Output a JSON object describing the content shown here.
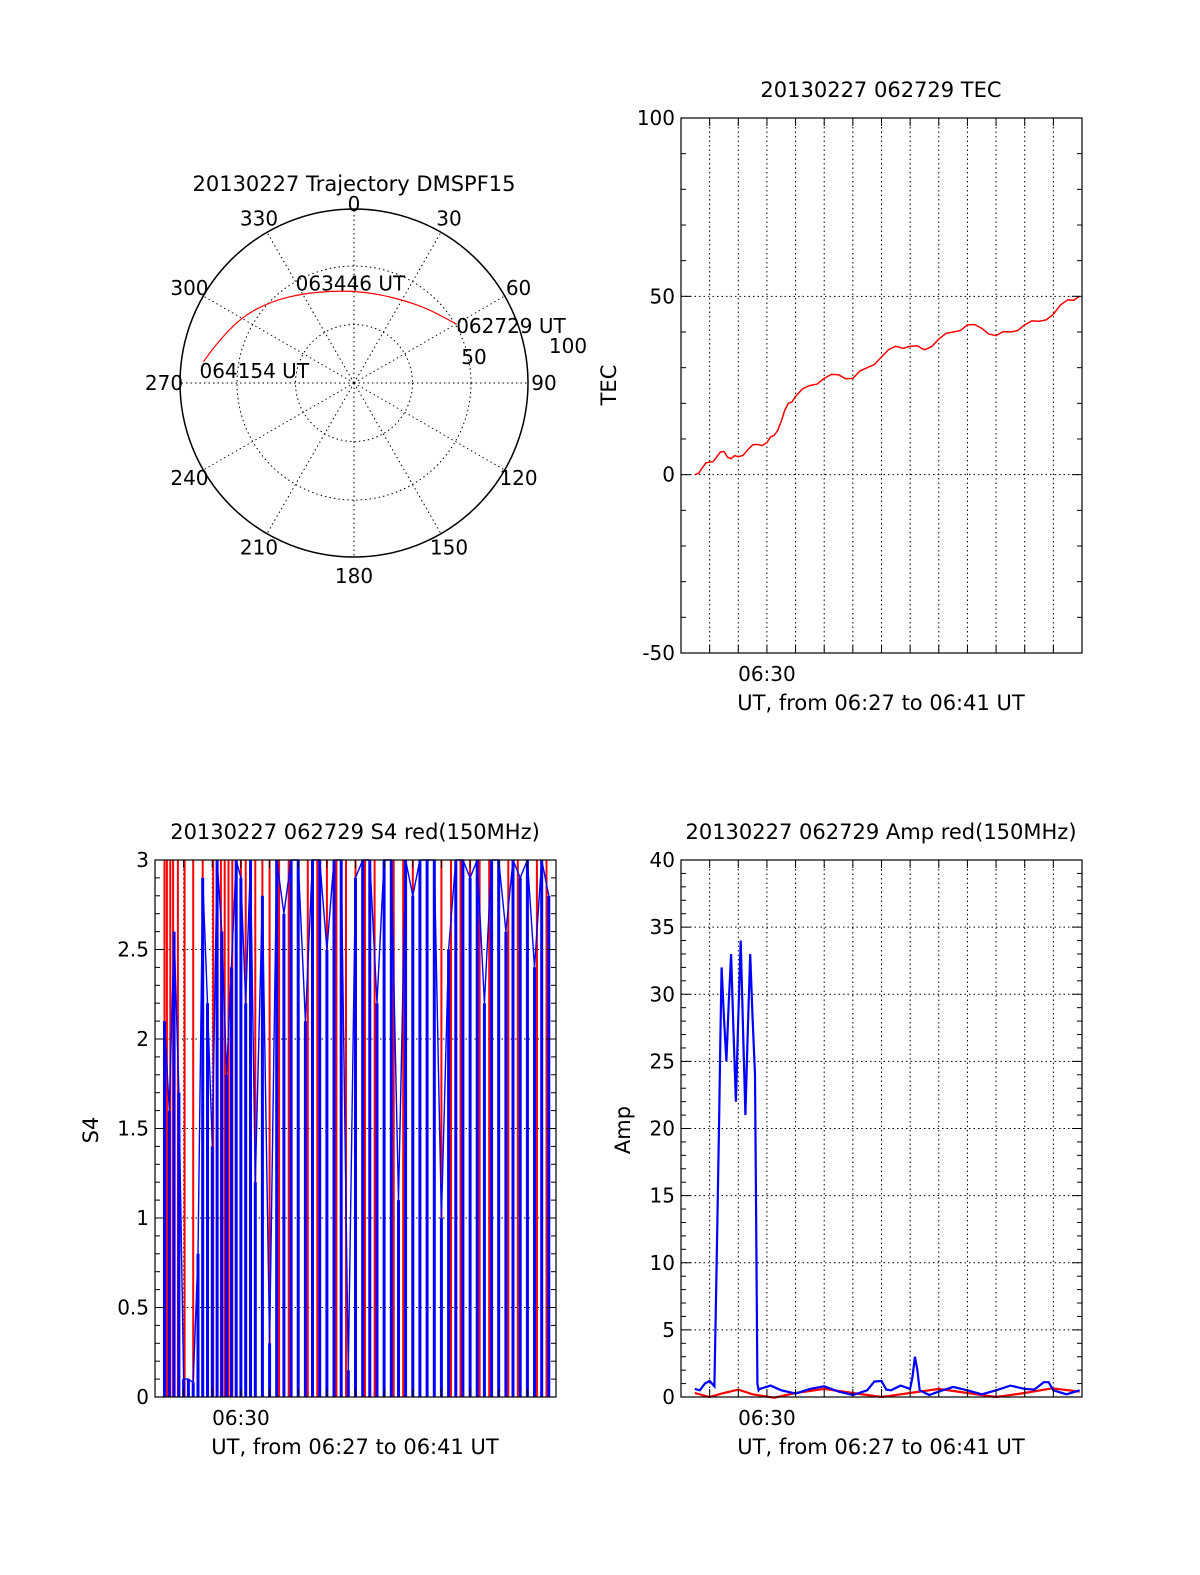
{
  "colors": {
    "red": "#ff0000",
    "blue": "#0000ff",
    "axis": "#000000"
  },
  "chart_data": [
    {
      "id": "trajectory",
      "type": "polar",
      "title": "20130227 Trajectory DMSPF15",
      "azimuth_labels": [
        "0",
        "30",
        "60",
        "90",
        "120",
        "150",
        "180",
        "210",
        "240",
        "270",
        "300",
        "330"
      ],
      "radial_labels": [
        "50",
        "100"
      ],
      "grid": true,
      "trajectory_color": "#ff0000",
      "trajectory": [
        {
          "az": 60,
          "r": 118
        },
        {
          "az": 45,
          "r": 105
        },
        {
          "az": 30,
          "r": 96
        },
        {
          "az": 15,
          "r": 92
        },
        {
          "az": 0,
          "r": 92
        },
        {
          "az": -15,
          "r": 95
        },
        {
          "az": -30,
          "r": 103
        },
        {
          "az": -45,
          "r": 116
        },
        {
          "az": -60,
          "r": 131
        },
        {
          "az": -75,
          "r": 144
        },
        {
          "az": -82,
          "r": 152
        }
      ],
      "annotations": [
        {
          "text": "062729 UT",
          "az": 60,
          "r": 118
        },
        {
          "text": "063446 UT",
          "az": -10,
          "r": 94
        },
        {
          "text": "064154 UT",
          "az": -82,
          "r": 152
        }
      ]
    },
    {
      "id": "tec",
      "type": "line",
      "title": "20130227 062729 TEC",
      "xlabel": "UT, from 06:27 to 06:41 UT",
      "ylabel": "TEC",
      "xlim": [
        "06:27:00",
        "06:41:00"
      ],
      "ylim": [
        -50,
        100
      ],
      "yticks": [
        -50,
        0,
        50,
        100
      ],
      "xtick_labels": [
        {
          "time": "06:30:00",
          "label": "06:30"
        }
      ],
      "grid": true,
      "series": [
        {
          "color": "#ff0000",
          "x": [
            "06:27:29",
            "06:27:45",
            "06:28:00",
            "06:28:15",
            "06:28:30",
            "06:28:45",
            "06:29:00",
            "06:29:20",
            "06:29:40",
            "06:30:00",
            "06:30:15",
            "06:30:30",
            "06:30:45",
            "06:31:00",
            "06:31:30",
            "06:32:00",
            "06:32:30",
            "06:33:00",
            "06:33:30",
            "06:34:00",
            "06:34:30",
            "06:35:00",
            "06:35:30",
            "06:36:00",
            "06:36:30",
            "06:37:00",
            "06:37:30",
            "06:38:00",
            "06:38:30",
            "06:39:00",
            "06:39:30",
            "06:40:00",
            "06:40:30",
            "06:40:55"
          ],
          "y": [
            0,
            2,
            3.5,
            5,
            6.5,
            4.5,
            5,
            7,
            8.5,
            9,
            11,
            15,
            20,
            22,
            25,
            27,
            28,
            27,
            30,
            33,
            36,
            36,
            35,
            38,
            40,
            42,
            41,
            39,
            40,
            42,
            43,
            45,
            49,
            50
          ]
        }
      ]
    },
    {
      "id": "s4",
      "type": "line",
      "title": "20130227 062729 S4 red(150MHz)",
      "xlabel": "UT, from 06:27 to 06:41 UT",
      "ylabel": "S4",
      "xlim": [
        "06:27:00",
        "06:41:00"
      ],
      "ylim": [
        0,
        3
      ],
      "yticks": [
        0,
        0.5,
        1,
        1.5,
        2,
        2.5,
        3
      ],
      "ytick_labels": [
        "0",
        "0.5",
        "1",
        "1.5",
        "2",
        "2.5",
        "3"
      ],
      "xtick_labels": [
        {
          "time": "06:30:00",
          "label": "06:30"
        }
      ],
      "grid": true,
      "series": [
        {
          "color": "#ff0000",
          "x": [
            "06:27:20",
            "06:27:25",
            "06:27:32",
            "06:27:38",
            "06:27:48",
            "06:28:02",
            "06:28:20",
            "06:28:40",
            "06:29:02",
            "06:29:10",
            "06:29:18",
            "06:29:26",
            "06:29:34",
            "06:29:42",
            "06:29:50",
            "06:30:00",
            "06:30:10",
            "06:30:20",
            "06:30:30",
            "06:30:45",
            "06:31:00",
            "06:31:20",
            "06:31:40",
            "06:32:00",
            "06:32:20",
            "06:32:40",
            "06:33:00",
            "06:33:20",
            "06:33:40",
            "06:34:00",
            "06:34:20",
            "06:34:40",
            "06:35:00",
            "06:35:20",
            "06:35:40",
            "06:36:00",
            "06:36:15",
            "06:36:30",
            "06:37:00",
            "06:37:20",
            "06:37:40",
            "06:38:00",
            "06:38:20",
            "06:38:40",
            "06:39:00",
            "06:39:20",
            "06:39:40",
            "06:40:00",
            "06:40:20",
            "06:40:40"
          ],
          "y": [
            3,
            3,
            3,
            3,
            3,
            3,
            3,
            3,
            3,
            3,
            3,
            3,
            3,
            3,
            3,
            3,
            3,
            3,
            3,
            3,
            3,
            3,
            3,
            3,
            3,
            3,
            3,
            3,
            3,
            3,
            3,
            3,
            3,
            3,
            3,
            3,
            3,
            3,
            3,
            3,
            3,
            3,
            3,
            3,
            3,
            3,
            3,
            3,
            3,
            3
          ]
        },
        {
          "color": "#0000ff",
          "x": [
            "06:27:20",
            "06:27:30",
            "06:27:40",
            "06:27:50",
            "06:28:00",
            "06:28:10",
            "06:28:20",
            "06:28:30",
            "06:28:40",
            "06:28:50",
            "06:29:00",
            "06:29:10",
            "06:29:20",
            "06:29:30",
            "06:29:40",
            "06:29:50",
            "06:30:00",
            "06:30:10",
            "06:30:20",
            "06:30:30",
            "06:30:45",
            "06:31:00",
            "06:31:15",
            "06:31:30",
            "06:31:45",
            "06:32:00",
            "06:32:15",
            "06:32:30",
            "06:32:45",
            "06:33:00",
            "06:33:15",
            "06:33:30",
            "06:33:45",
            "06:34:00",
            "06:34:15",
            "06:34:30",
            "06:34:45",
            "06:35:00",
            "06:35:15",
            "06:35:30",
            "06:35:45",
            "06:36:00",
            "06:36:15",
            "06:36:30",
            "06:36:45",
            "06:37:00",
            "06:37:15",
            "06:37:30",
            "06:37:45",
            "06:38:00",
            "06:38:15",
            "06:38:30",
            "06:38:45",
            "06:39:00",
            "06:39:15",
            "06:39:30",
            "06:39:45",
            "06:40:00",
            "06:40:15",
            "06:40:30",
            "06:40:45"
          ],
          "y": [
            2.1,
            1.6,
            2.6,
            1.7,
            0.1,
            0.1,
            0.08,
            0.8,
            2.9,
            2.2,
            1.4,
            3,
            2.6,
            1.8,
            2.4,
            3,
            2.9,
            2.2,
            3,
            1.2,
            2.8,
            0.3,
            3,
            2.7,
            3,
            3,
            2.1,
            3,
            3,
            2.5,
            3,
            3,
            0.15,
            2.9,
            3,
            3,
            2.2,
            3,
            3,
            1.1,
            3,
            2.8,
            3,
            3,
            3,
            1.0,
            2.5,
            3,
            3,
            2.9,
            3,
            2.2,
            3,
            3,
            2.6,
            3,
            2.9,
            3,
            2.4,
            3,
            2.8
          ]
        }
      ]
    },
    {
      "id": "amp",
      "type": "line",
      "title": "20130227 062729 Amp red(150MHz)",
      "xlabel": "UT, from 06:27 to 06:41 UT",
      "ylabel": "Amp",
      "xlim": [
        "06:27:00",
        "06:41:00"
      ],
      "ylim": [
        0,
        40
      ],
      "yticks": [
        0,
        5,
        10,
        15,
        20,
        25,
        30,
        35,
        40
      ],
      "xtick_labels": [
        {
          "time": "06:30:00",
          "label": "06:30"
        }
      ],
      "grid": true,
      "series": [
        {
          "color": "#ff0000",
          "x": [
            "06:27:29",
            "06:28:30",
            "06:29:30",
            "06:31:00",
            "06:33:00",
            "06:35:00",
            "06:37:00",
            "06:39:00",
            "06:40:55"
          ],
          "y": [
            0.3,
            0.3,
            0.2,
            0.3,
            0.3,
            0.3,
            0.3,
            0.3,
            0.4
          ]
        },
        {
          "color": "#0000ff",
          "x": [
            "06:27:29",
            "06:27:50",
            "06:28:10",
            "06:28:20",
            "06:28:25",
            "06:28:35",
            "06:28:45",
            "06:28:55",
            "06:29:05",
            "06:29:15",
            "06:29:25",
            "06:29:35",
            "06:29:40",
            "06:29:45",
            "06:30:30",
            "06:31:30",
            "06:32:30",
            "06:33:30",
            "06:34:00",
            "06:34:20",
            "06:35:00",
            "06:35:10",
            "06:35:20",
            "06:36:00",
            "06:37:00",
            "06:38:00",
            "06:39:00",
            "06:39:40",
            "06:40:00",
            "06:40:55"
          ],
          "y": [
            0.6,
            1.0,
            0.8,
            21,
            32,
            25,
            33,
            22,
            34,
            21,
            33,
            24,
            1.0,
            0.6,
            0.5,
            0.6,
            0.4,
            0.5,
            1.2,
            0.5,
            0.6,
            3,
            0.5,
            0.4,
            0.5,
            0.5,
            0.6,
            1.1,
            0.5,
            0.5
          ]
        }
      ]
    }
  ]
}
